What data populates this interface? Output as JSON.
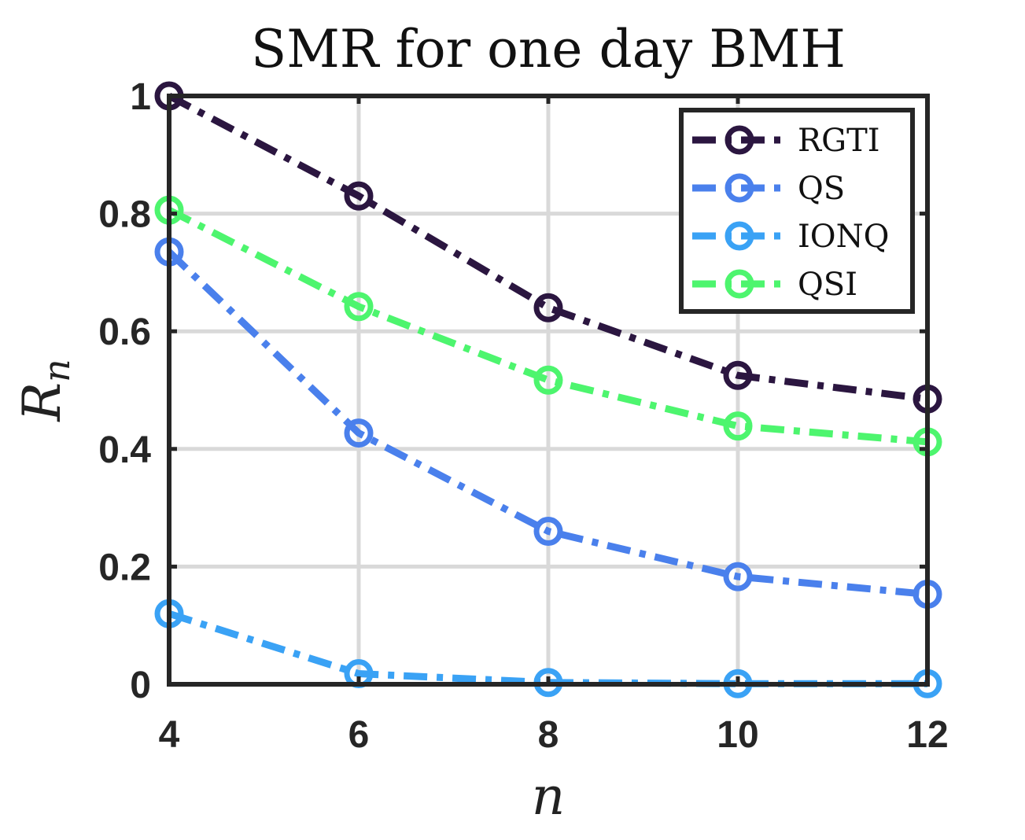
{
  "chart_data": {
    "type": "line",
    "title": "SMR for one day BMH",
    "xlabel": "n",
    "ylabel_main": "R",
    "ylabel_sub": "n",
    "x": [
      4,
      6,
      8,
      10,
      12
    ],
    "xlim": [
      4,
      12
    ],
    "ylim": [
      0,
      1
    ],
    "xticks": [
      "4",
      "6",
      "8",
      "10",
      "12"
    ],
    "yticks": [
      "0",
      "0.2",
      "0.4",
      "0.6",
      "0.8",
      "1"
    ],
    "grid": true,
    "legend_position": "top-right",
    "series": [
      {
        "name": "RGTI",
        "color": "#2b1640",
        "values": [
          1.0,
          0.83,
          0.64,
          0.525,
          0.485
        ]
      },
      {
        "name": "QS",
        "color": "#4a80ec",
        "values": [
          0.735,
          0.427,
          0.26,
          0.183,
          0.153
        ]
      },
      {
        "name": "IONQ",
        "color": "#3aa2f5",
        "values": [
          0.12,
          0.018,
          0.003,
          0.001,
          0.001
        ]
      },
      {
        "name": "QSI",
        "color": "#4df56e",
        "values": [
          0.806,
          0.642,
          0.517,
          0.439,
          0.412
        ]
      }
    ]
  }
}
